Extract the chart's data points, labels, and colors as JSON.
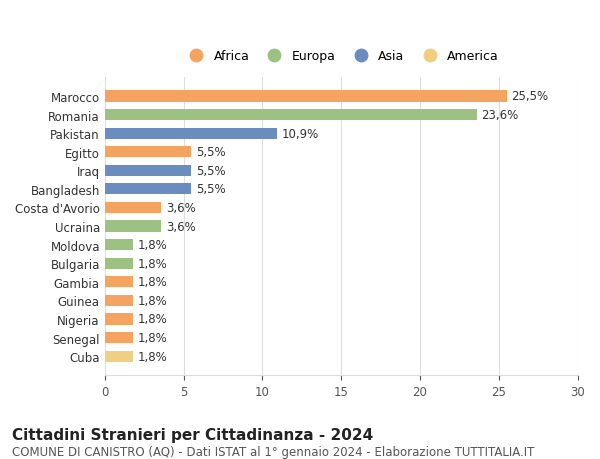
{
  "countries": [
    "Cuba",
    "Senegal",
    "Nigeria",
    "Guinea",
    "Gambia",
    "Bulgaria",
    "Moldova",
    "Ucraina",
    "Costa d'Avorio",
    "Bangladesh",
    "Iraq",
    "Egitto",
    "Pakistan",
    "Romania",
    "Marocco"
  ],
  "values": [
    1.8,
    1.8,
    1.8,
    1.8,
    1.8,
    1.8,
    1.8,
    3.6,
    3.6,
    5.5,
    5.5,
    5.5,
    10.9,
    23.6,
    25.5
  ],
  "labels": [
    "1,8%",
    "1,8%",
    "1,8%",
    "1,8%",
    "1,8%",
    "1,8%",
    "1,8%",
    "3,6%",
    "3,6%",
    "5,5%",
    "5,5%",
    "5,5%",
    "10,9%",
    "23,6%",
    "25,5%"
  ],
  "continents": [
    "America",
    "Africa",
    "Africa",
    "Africa",
    "Africa",
    "Europa",
    "Europa",
    "Europa",
    "Africa",
    "Asia",
    "Asia",
    "Africa",
    "Asia",
    "Europa",
    "Africa"
  ],
  "continent_colors": {
    "Africa": "#F4A460",
    "Europa": "#9DC183",
    "Asia": "#6B8CBE",
    "America": "#F0D080"
  },
  "legend_order": [
    "Africa",
    "Europa",
    "Asia",
    "America"
  ],
  "legend_colors": [
    "#F4A460",
    "#9DC183",
    "#6B8CBE",
    "#F0D080"
  ],
  "title": "Cittadini Stranieri per Cittadinanza - 2024",
  "subtitle": "COMUNE DI CANISTRO (AQ) - Dati ISTAT al 1° gennaio 2024 - Elaborazione TUTTITALIA.IT",
  "xlim": [
    0,
    30
  ],
  "xticks": [
    0,
    5,
    10,
    15,
    20,
    25,
    30
  ],
  "background_color": "#ffffff",
  "grid_color": "#dddddd",
  "bar_height": 0.6,
  "label_fontsize": 8.5,
  "tick_fontsize": 8.5,
  "title_fontsize": 11,
  "subtitle_fontsize": 8.5
}
